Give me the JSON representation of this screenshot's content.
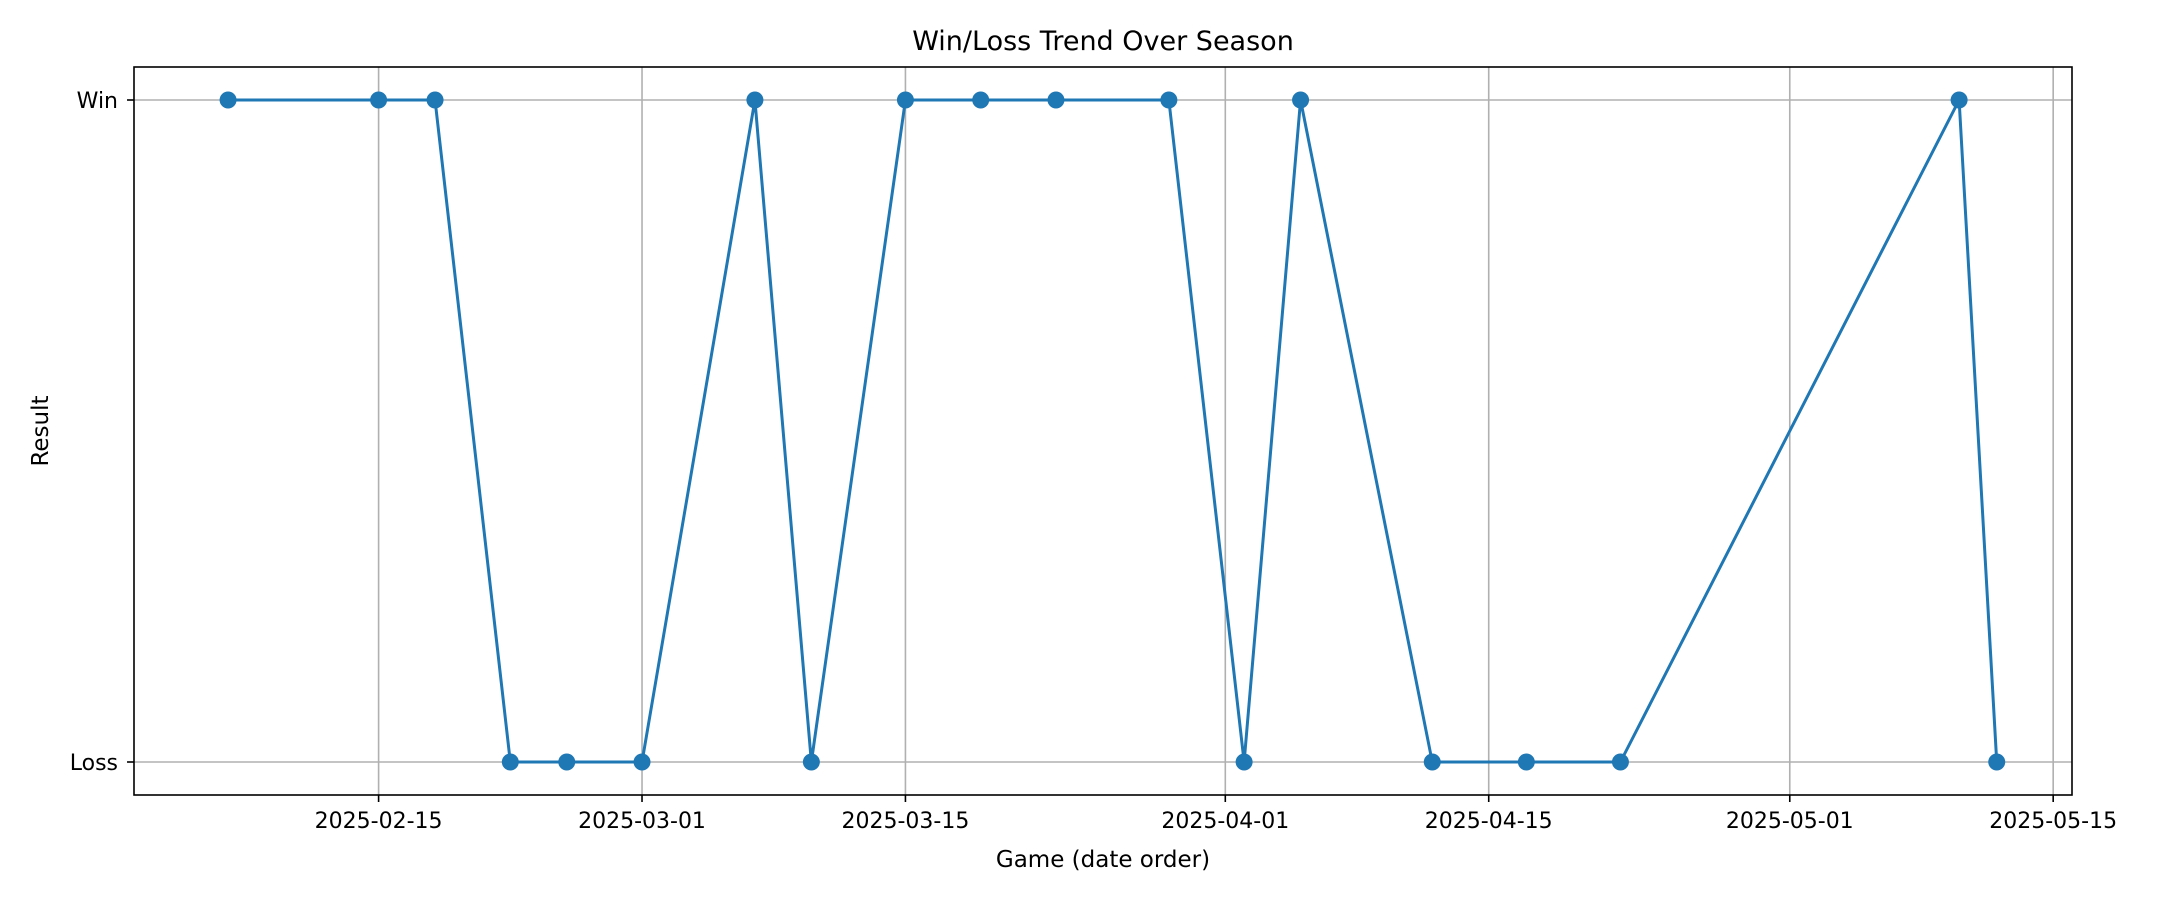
{
  "chart_data": {
    "type": "line",
    "title": "Win/Loss Trend Over Season",
    "xlabel": "Game (date order)",
    "ylabel": "Result",
    "x_axis": {
      "type": "date",
      "range": [
        "2025-02-02",
        "2025-05-16"
      ],
      "ticks": [
        "2025-02-15",
        "2025-03-01",
        "2025-03-15",
        "2025-04-01",
        "2025-04-15",
        "2025-05-01",
        "2025-05-15"
      ]
    },
    "y_axis": {
      "categories": [
        "Loss",
        "Win"
      ]
    },
    "grid": true,
    "series": [
      {
        "color": "#1f77b4",
        "marker": "circle",
        "points": [
          {
            "x": "2025-02-07",
            "y": "Win"
          },
          {
            "x": "2025-02-15",
            "y": "Win"
          },
          {
            "x": "2025-02-18",
            "y": "Win"
          },
          {
            "x": "2025-02-22",
            "y": "Loss"
          },
          {
            "x": "2025-02-25",
            "y": "Loss"
          },
          {
            "x": "2025-03-01",
            "y": "Loss"
          },
          {
            "x": "2025-03-07",
            "y": "Win"
          },
          {
            "x": "2025-03-10",
            "y": "Loss"
          },
          {
            "x": "2025-03-15",
            "y": "Win"
          },
          {
            "x": "2025-03-19",
            "y": "Win"
          },
          {
            "x": "2025-03-23",
            "y": "Win"
          },
          {
            "x": "2025-03-29",
            "y": "Win"
          },
          {
            "x": "2025-04-02",
            "y": "Loss"
          },
          {
            "x": "2025-04-05",
            "y": "Win"
          },
          {
            "x": "2025-04-12",
            "y": "Loss"
          },
          {
            "x": "2025-04-17",
            "y": "Loss"
          },
          {
            "x": "2025-04-22",
            "y": "Loss"
          },
          {
            "x": "2025-05-10",
            "y": "Win"
          },
          {
            "x": "2025-05-12",
            "y": "Loss"
          }
        ]
      }
    ]
  }
}
